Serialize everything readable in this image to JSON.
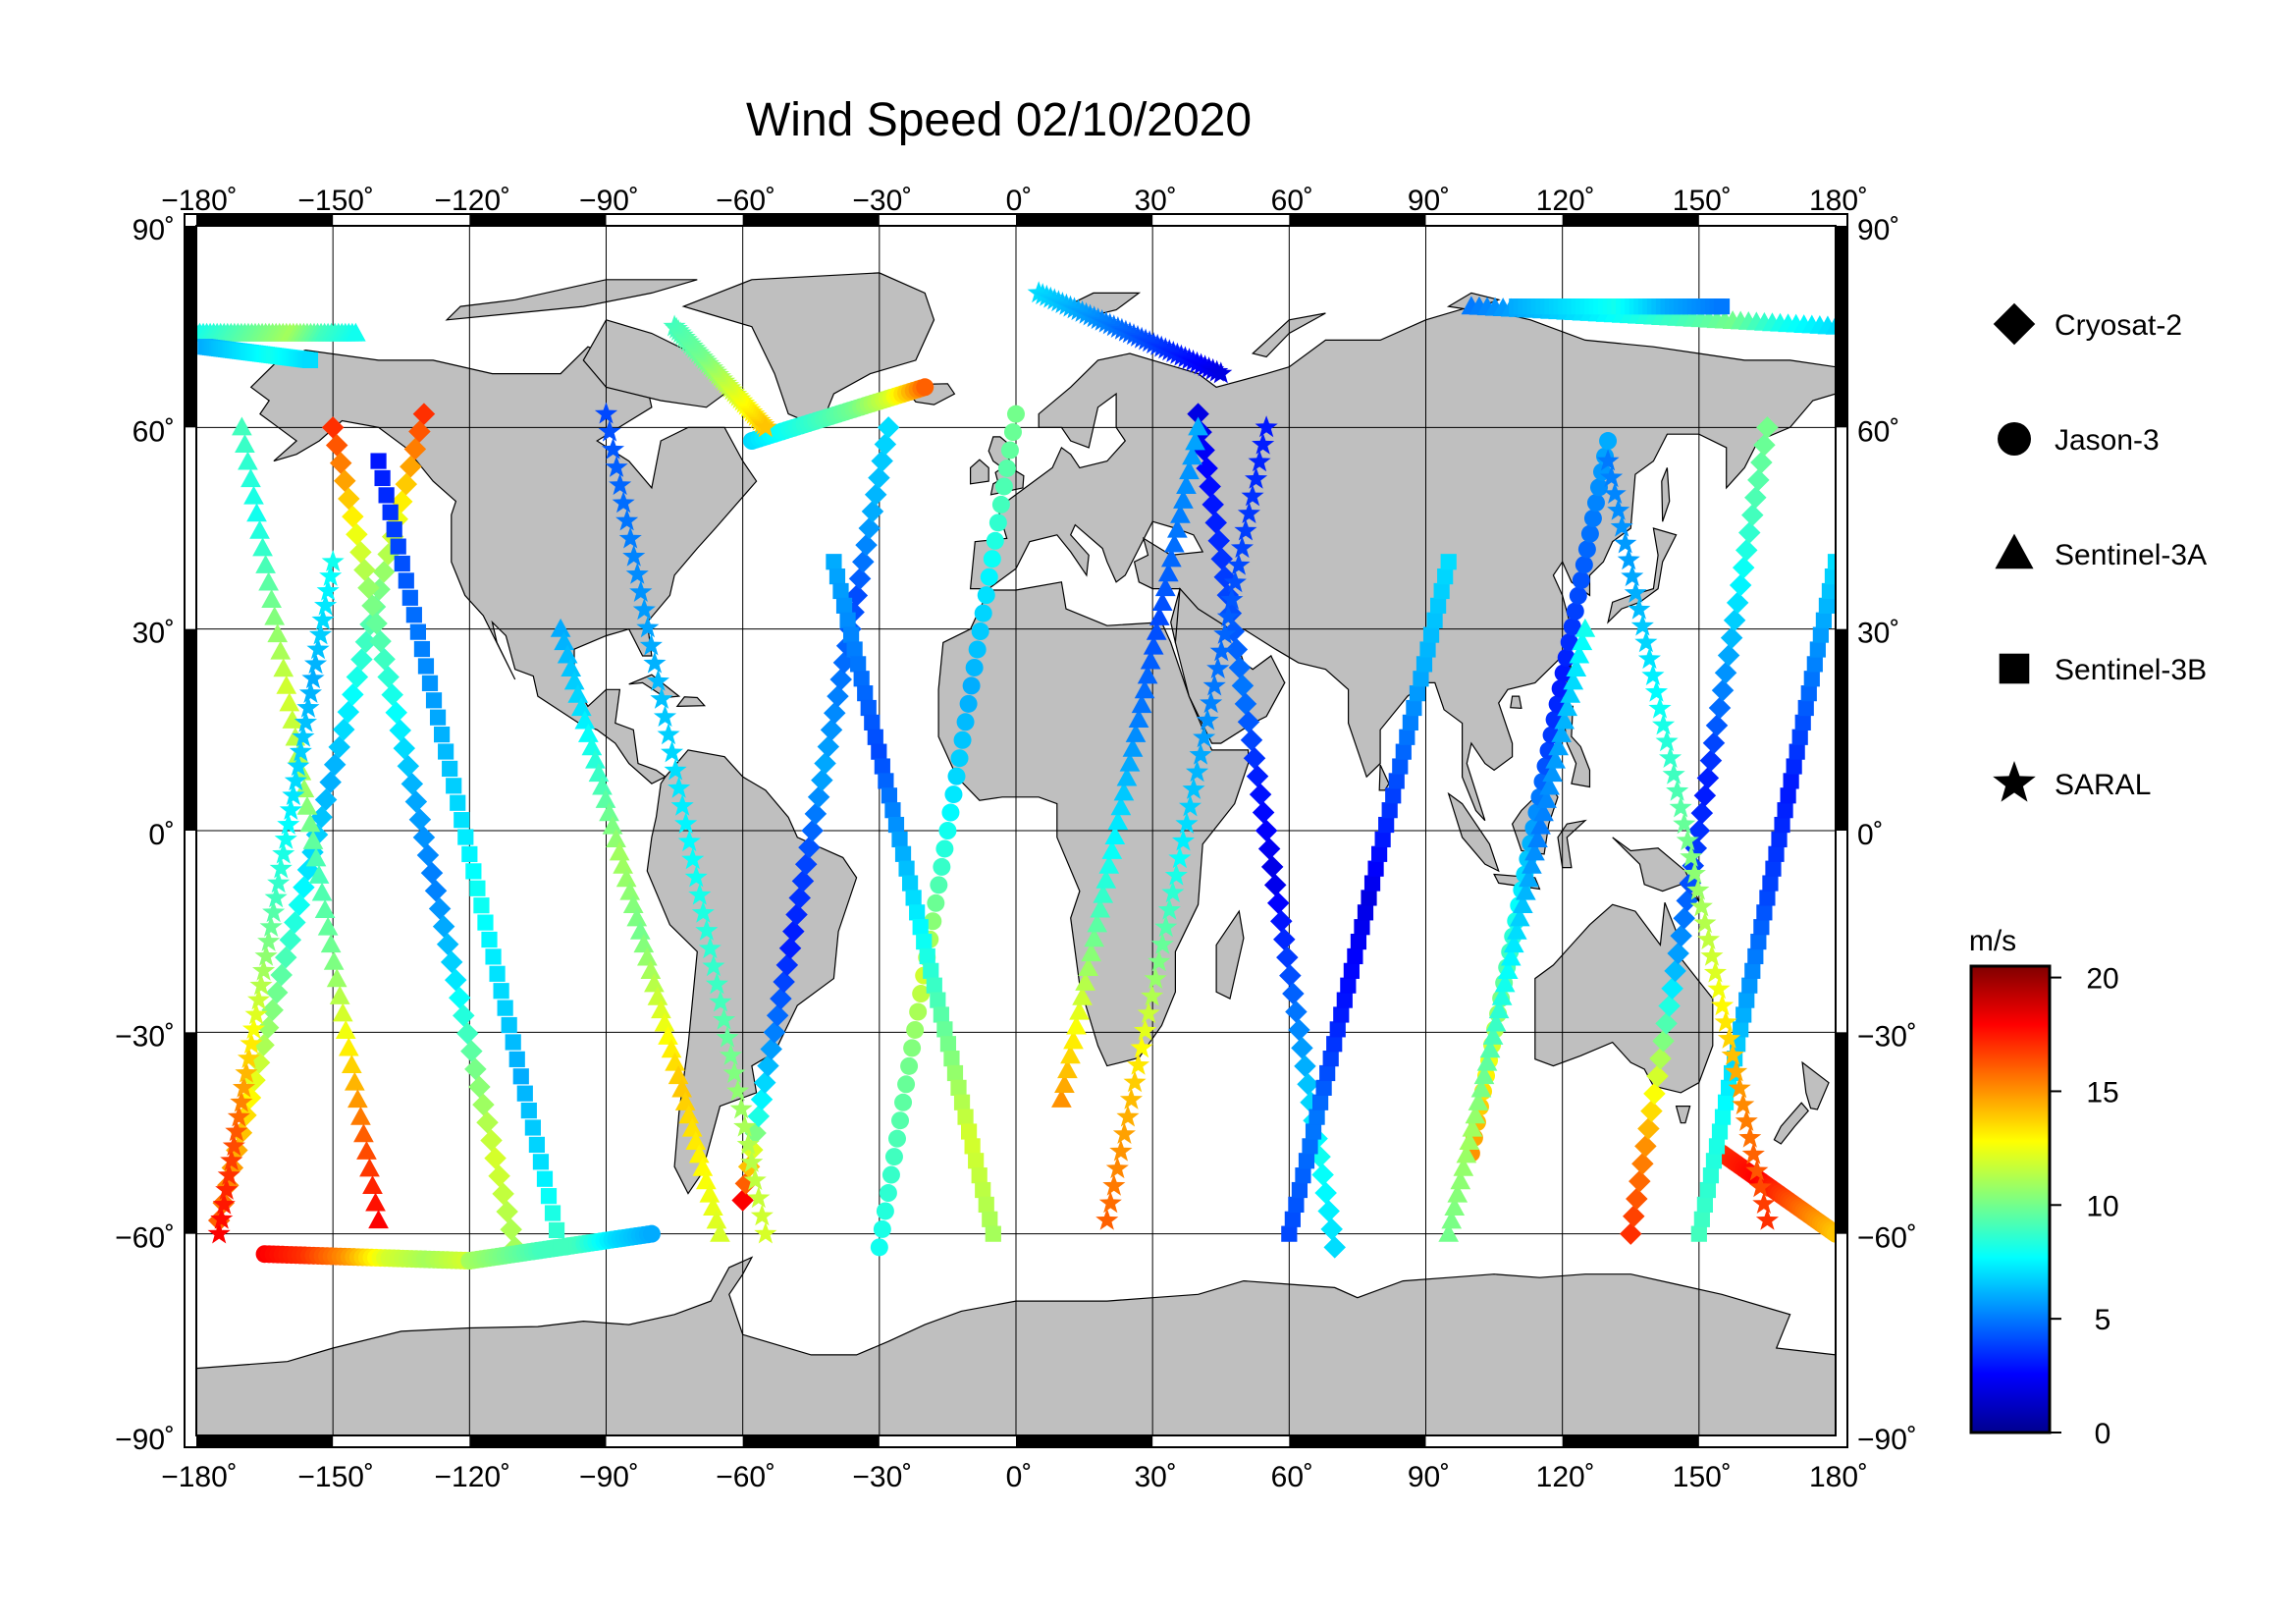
{
  "title": "Wind Speed 02/10/2020",
  "map": {
    "projection": "plate-carree",
    "lon_range": [
      -180,
      180
    ],
    "lat_range": [
      -90,
      90
    ],
    "lon_ticks": [
      -180,
      -150,
      -120,
      -90,
      -60,
      -30,
      0,
      30,
      60,
      90,
      120,
      150,
      180
    ],
    "lat_ticks": [
      -90,
      -60,
      -30,
      0,
      30,
      60,
      90
    ],
    "lon_tick_labels": [
      "−180˚",
      "−150˚",
      "−120˚",
      "−90˚",
      "−60˚",
      "−30˚",
      "0˚",
      "30˚",
      "60˚",
      "90˚",
      "120˚",
      "150˚",
      "180˚"
    ],
    "lat_tick_labels": [
      "−90˚",
      "−60˚",
      "−30˚",
      "0˚",
      "30˚",
      "60˚",
      "90˚"
    ],
    "land_color": "#bfbfbf",
    "ocean_color": "#ffffff",
    "grid": true
  },
  "legend": {
    "items": [
      {
        "label": "Cryosat-2",
        "marker": "diamond"
      },
      {
        "label": "Jason-3",
        "marker": "circle"
      },
      {
        "label": "Sentinel-3A",
        "marker": "triangle"
      },
      {
        "label": "Sentinel-3B",
        "marker": "square"
      },
      {
        "label": "SARAL",
        "marker": "star"
      }
    ]
  },
  "colorbar": {
    "unit": "m/s",
    "min": 0,
    "max": 20.5,
    "ticks": [
      0,
      5,
      10,
      15,
      20
    ],
    "tick_labels": [
      "0",
      "5",
      "10",
      "15",
      "20"
    ],
    "colormap": "jet"
  },
  "chart_data": {
    "type": "scatter",
    "title": "Wind Speed 02/10/2020",
    "value_label": "m/s",
    "value_range": [
      0,
      20.5
    ],
    "series": [
      {
        "name": "Cryosat-2",
        "marker": "diamond",
        "tracks": [
          {
            "start": [
              -175,
              -58
            ],
            "end": [
              -130,
              62
            ],
            "speeds": [
              16,
              14,
              11,
              9,
              7,
              6,
              8,
              10,
              13,
              17
            ]
          },
          {
            "start": [
              -150,
              60
            ],
            "end": [
              -110,
              -62
            ],
            "speeds": [
              17,
              13,
              10,
              8,
              6,
              5,
              7,
              10,
              12,
              11
            ]
          },
          {
            "start": [
              -60,
              -55
            ],
            "end": [
              -28,
              60
            ],
            "speeds": [
              18,
              8,
              5,
              3,
              4,
              6,
              5,
              4,
              6,
              7
            ]
          },
          {
            "start": [
              40,
              62
            ],
            "end": [
              70,
              -62
            ],
            "speeds": [
              2,
              3,
              4,
              5,
              3,
              2,
              4,
              6,
              8,
              7
            ]
          },
          {
            "start": [
              135,
              -60
            ],
            "end": [
              165,
              60
            ],
            "speeds": [
              17,
              15,
              11,
              6,
              4,
              3,
              5,
              7,
              9,
              10
            ]
          }
        ]
      },
      {
        "name": "Jason-3",
        "marker": "circle",
        "tracks": [
          {
            "start": [
              -165,
              -63
            ],
            "end": [
              -120,
              -64
            ],
            "speeds": [
              18,
              17,
              15,
              12,
              11,
              12
            ]
          },
          {
            "start": [
              -120,
              -64
            ],
            "end": [
              -80,
              -60
            ],
            "speeds": [
              11,
              10,
              9,
              9,
              7,
              6
            ]
          },
          {
            "start": [
              -58,
              58
            ],
            "end": [
              -20,
              66
            ],
            "speeds": [
              7,
              8,
              9,
              10,
              12,
              16
            ]
          },
          {
            "start": [
              -30,
              -62
            ],
            "end": [
              0,
              62
            ],
            "speeds": [
              8,
              9,
              10,
              12,
              9,
              7,
              6,
              7,
              9,
              10
            ]
          },
          {
            "start": [
              100,
              -48
            ],
            "end": [
              130,
              58
            ],
            "speeds": [
              15,
              13,
              10,
              8,
              6,
              4,
              3,
              4,
              5,
              6
            ]
          },
          {
            "start": [
              155,
              -48
            ],
            "end": [
              180,
              -60
            ],
            "speeds": [
              17,
              18,
              16,
              14
            ]
          }
        ]
      },
      {
        "name": "Sentinel-3A",
        "marker": "triangle",
        "tracks": [
          {
            "start": [
              -180,
              74
            ],
            "end": [
              -145,
              74
            ],
            "speeds": [
              8,
              9,
              10,
              11,
              9,
              8
            ]
          },
          {
            "start": [
              -170,
              60
            ],
            "end": [
              -140,
              -58
            ],
            "speeds": [
              9,
              8,
              10,
              12,
              11,
              9,
              10,
              13,
              16,
              18
            ]
          },
          {
            "start": [
              -100,
              30
            ],
            "end": [
              -65,
              -60
            ],
            "speeds": [
              6,
              7,
              9,
              11,
              10,
              12,
              14,
              13,
              12
            ]
          },
          {
            "start": [
              10,
              -40
            ],
            "end": [
              40,
              60
            ],
            "speeds": [
              15,
              12,
              9,
              7,
              5,
              4,
              5,
              6
            ]
          },
          {
            "start": [
              100,
              78
            ],
            "end": [
              180,
              75
            ],
            "speeds": [
              5,
              6,
              7,
              8,
              9,
              10,
              8,
              7
            ]
          },
          {
            "start": [
              95,
              -60
            ],
            "end": [
              125,
              30
            ],
            "speeds": [
              10,
              11,
              9,
              7,
              5,
              6,
              8
            ]
          }
        ]
      },
      {
        "name": "Sentinel-3B",
        "marker": "square",
        "tracks": [
          {
            "start": [
              -178,
              72
            ],
            "end": [
              -155,
              70
            ],
            "speeds": [
              6,
              7,
              8,
              7
            ]
          },
          {
            "start": [
              -140,
              55
            ],
            "end": [
              -100,
              -62
            ],
            "speeds": [
              3,
              4,
              5,
              6,
              7,
              8,
              7,
              6,
              7,
              9
            ]
          },
          {
            "start": [
              -40,
              40
            ],
            "end": [
              -5,
              -60
            ],
            "speeds": [
              6,
              5,
              4,
              6,
              8,
              10,
              12,
              11
            ]
          },
          {
            "start": [
              60,
              -60
            ],
            "end": [
              95,
              40
            ],
            "speeds": [
              4,
              5,
              3,
              2,
              4,
              6,
              7
            ]
          },
          {
            "start": [
              110,
              78
            ],
            "end": [
              155,
              78
            ],
            "speeds": [
              6,
              7,
              8,
              6,
              5
            ]
          },
          {
            "start": [
              150,
              -60
            ],
            "end": [
              180,
              40
            ],
            "speeds": [
              9,
              8,
              6,
              4,
              3,
              5,
              7
            ]
          }
        ]
      },
      {
        "name": "SARAL",
        "marker": "star",
        "tracks": [
          {
            "start": [
              5,
              80
            ],
            "end": [
              45,
              68
            ],
            "speeds": [
              7,
              6,
              5,
              4,
              3,
              2
            ]
          },
          {
            "start": [
              -175,
              -60
            ],
            "end": [
              -150,
              40
            ],
            "speeds": [
              18,
              16,
              12,
              9,
              7,
              6,
              8
            ]
          },
          {
            "start": [
              -90,
              62
            ],
            "end": [
              -55,
              -60
            ],
            "speeds": [
              4,
              5,
              6,
              7,
              8,
              9,
              11,
              12
            ]
          },
          {
            "start": [
              -75,
              75
            ],
            "end": [
              -55,
              60
            ],
            "speeds": [
              9,
              10,
              12,
              14
            ]
          },
          {
            "start": [
              20,
              -58
            ],
            "end": [
              55,
              60
            ],
            "speeds": [
              16,
              14,
              10,
              7,
              5,
              4,
              3
            ]
          },
          {
            "start": [
              130,
              55
            ],
            "end": [
              165,
              -58
            ],
            "speeds": [
              5,
              6,
              8,
              10,
              12,
              15,
              17
            ]
          }
        ]
      }
    ]
  }
}
